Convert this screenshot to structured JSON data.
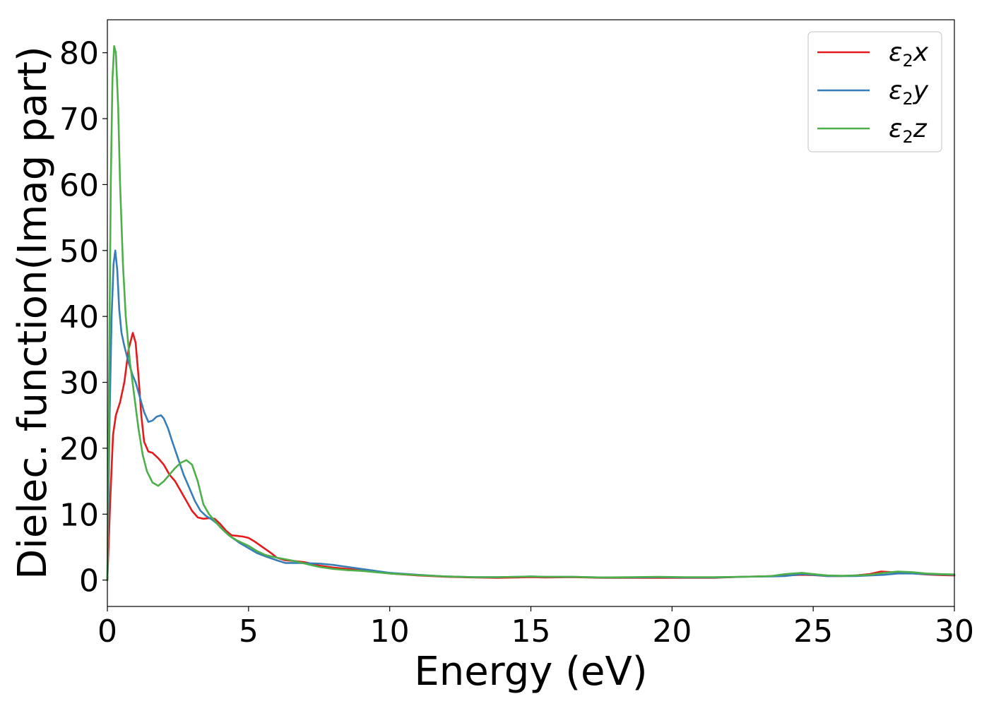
{
  "chart_data": {
    "type": "line",
    "title": "",
    "xlabel": "Energy (eV)",
    "ylabel": "Dielec. function(Imag part)",
    "xlim": [
      0,
      30
    ],
    "ylim": [
      -4,
      85
    ],
    "xticks": [
      0,
      5,
      10,
      15,
      20,
      25,
      30
    ],
    "yticks": [
      0,
      10,
      20,
      30,
      40,
      50,
      60,
      70,
      80
    ],
    "grid": false,
    "legend_position": "top-right",
    "series": [
      {
        "name": "ε2x",
        "legend": {
          "base": "ε",
          "sub": "2",
          "suffix": "x"
        },
        "color": "#e41a1c",
        "x": [
          0,
          0.1,
          0.2,
          0.3,
          0.45,
          0.6,
          0.75,
          0.9,
          1.0,
          1.1,
          1.2,
          1.3,
          1.45,
          1.6,
          1.8,
          2.0,
          2.2,
          2.4,
          2.6,
          2.8,
          3.0,
          3.2,
          3.4,
          3.6,
          3.8,
          4.0,
          4.2,
          4.4,
          4.6,
          4.8,
          5.0,
          5.2,
          5.4,
          5.6,
          5.8,
          6.0,
          6.3,
          6.6,
          7.0,
          7.5,
          8.0,
          8.5,
          9.0,
          9.5,
          10.0,
          11.0,
          12.0,
          13.0,
          13.8,
          14.5,
          15.0,
          15.5,
          16.5,
          17.5,
          18.5,
          19.5,
          20.5,
          21.5,
          22.5,
          23.5,
          24.0,
          24.6,
          25.0,
          25.5,
          26.0,
          26.5,
          27.0,
          27.4,
          27.8,
          28.2,
          28.6,
          29.0,
          29.5,
          30.0
        ],
        "values": [
          0,
          12,
          22,
          25,
          27,
          30,
          35,
          37.5,
          36,
          31,
          25,
          21,
          19.5,
          19.3,
          18.5,
          17.5,
          16,
          15,
          13.5,
          12,
          10.5,
          9.5,
          9.3,
          9.4,
          9.3,
          8.5,
          7.5,
          6.8,
          6.7,
          6.6,
          6.4,
          5.9,
          5.3,
          4.7,
          4.1,
          3.4,
          3.0,
          2.9,
          2.7,
          2.2,
          1.9,
          1.7,
          1.5,
          1.3,
          1.0,
          0.7,
          0.5,
          0.4,
          0.35,
          0.4,
          0.45,
          0.4,
          0.45,
          0.35,
          0.35,
          0.35,
          0.35,
          0.35,
          0.5,
          0.6,
          0.7,
          0.8,
          0.75,
          0.6,
          0.6,
          0.7,
          0.9,
          1.3,
          1.2,
          1.2,
          1.0,
          0.85,
          0.75,
          0.7
        ]
      },
      {
        "name": "ε2y",
        "legend": {
          "base": "ε",
          "sub": "2",
          "suffix": "y"
        },
        "color": "#377eb8",
        "x": [
          0,
          0.08,
          0.15,
          0.22,
          0.28,
          0.35,
          0.42,
          0.5,
          0.6,
          0.75,
          0.9,
          1.0,
          1.1,
          1.2,
          1.3,
          1.45,
          1.6,
          1.75,
          1.9,
          2.0,
          2.15,
          2.3,
          2.5,
          2.7,
          2.9,
          3.1,
          3.3,
          3.5,
          3.7,
          3.9,
          4.1,
          4.3,
          4.5,
          4.7,
          4.9,
          5.1,
          5.3,
          5.6,
          6.0,
          6.3,
          6.8,
          7.5,
          8.0,
          8.5,
          9.0,
          9.5,
          10.0,
          11.0,
          12.0,
          13.0,
          13.8,
          14.5,
          15.0,
          15.5,
          16.5,
          17.5,
          18.5,
          19.5,
          20.5,
          21.5,
          22.5,
          23.5,
          24.0,
          24.6,
          25.0,
          25.5,
          26.0,
          26.5,
          27.0,
          27.5,
          28.0,
          28.5,
          29.0,
          29.5,
          30.0
        ],
        "values": [
          0,
          25,
          40,
          48,
          50,
          47,
          41,
          37.5,
          35.5,
          33,
          31,
          30,
          28.5,
          27,
          25.5,
          24,
          24.2,
          24.8,
          25,
          24.5,
          23,
          21,
          18.5,
          16,
          14,
          12,
          10.5,
          9.7,
          9.2,
          8.5,
          7.6,
          6.8,
          6.2,
          5.6,
          5.1,
          4.6,
          4.1,
          3.6,
          3.0,
          2.6,
          2.6,
          2.5,
          2.3,
          2.0,
          1.7,
          1.4,
          1.1,
          0.8,
          0.55,
          0.45,
          0.45,
          0.5,
          0.55,
          0.5,
          0.5,
          0.4,
          0.4,
          0.45,
          0.4,
          0.4,
          0.5,
          0.55,
          0.6,
          0.9,
          0.8,
          0.6,
          0.6,
          0.6,
          0.7,
          0.8,
          1.0,
          1.0,
          0.9,
          0.85,
          0.8
        ]
      },
      {
        "name": "ε2z",
        "legend": {
          "base": "ε",
          "sub": "2",
          "suffix": "z"
        },
        "color": "#4daf4a",
        "x": [
          0,
          0.06,
          0.12,
          0.18,
          0.24,
          0.3,
          0.38,
          0.45,
          0.55,
          0.65,
          0.8,
          0.95,
          1.1,
          1.25,
          1.4,
          1.6,
          1.8,
          2.0,
          2.2,
          2.4,
          2.6,
          2.8,
          3.0,
          3.2,
          3.4,
          3.6,
          3.8,
          4.0,
          4.2,
          4.4,
          4.6,
          4.8,
          5.0,
          5.3,
          5.6,
          6.0,
          6.5,
          7.0,
          7.5,
          8.0,
          8.5,
          9.0,
          10.0,
          11.0,
          12.0,
          13.0,
          13.8,
          14.5,
          15.0,
          15.5,
          16.5,
          17.5,
          18.5,
          19.5,
          20.5,
          21.5,
          22.5,
          23.5,
          24.0,
          24.6,
          25.0,
          25.5,
          26.0,
          26.5,
          27.0,
          27.5,
          28.0,
          28.5,
          29.0,
          29.5,
          30.0
        ],
        "values": [
          0,
          30,
          60,
          76,
          81,
          80,
          72,
          60,
          48,
          40,
          33,
          28,
          23,
          19,
          16.5,
          14.8,
          14.3,
          15,
          16,
          17,
          17.8,
          18.2,
          17.5,
          15,
          11.5,
          10,
          9,
          8,
          7.2,
          6.5,
          6,
          5.6,
          5.2,
          4.4,
          3.8,
          3.4,
          3.0,
          2.5,
          2.0,
          1.7,
          1.5,
          1.4,
          1.0,
          0.75,
          0.55,
          0.45,
          0.45,
          0.5,
          0.55,
          0.5,
          0.5,
          0.4,
          0.45,
          0.5,
          0.45,
          0.45,
          0.5,
          0.6,
          0.9,
          1.1,
          0.9,
          0.7,
          0.65,
          0.7,
          0.8,
          1.1,
          1.3,
          1.2,
          1.0,
          0.9,
          0.85
        ]
      }
    ]
  }
}
